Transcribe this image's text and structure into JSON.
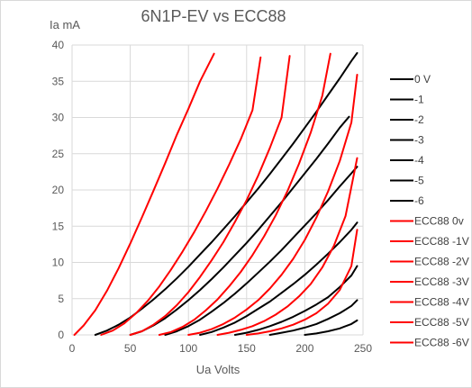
{
  "chart_data": {
    "type": "line",
    "title": "6N1P-EV vs ECC88",
    "xlabel": "Ua Volts",
    "ylabel": "Ia mA",
    "xlim": [
      0,
      250
    ],
    "ylim": [
      0,
      40
    ],
    "xticks": [
      0,
      50,
      100,
      150,
      200,
      250
    ],
    "yticks": [
      0,
      5,
      10,
      15,
      20,
      25,
      30,
      35,
      40
    ],
    "grid": true,
    "legend_position": "right",
    "colors": {
      "6N1P-EV": "#000000",
      "ECC88": "#ff0000"
    },
    "series": [
      {
        "name": "0 V",
        "color": "#000000",
        "points": [
          [
            20,
            0
          ],
          [
            30,
            0.6
          ],
          [
            40,
            1.4
          ],
          [
            50,
            2.4
          ],
          [
            60,
            3.6
          ],
          [
            70,
            4.9
          ],
          [
            80,
            6.3
          ],
          [
            90,
            7.8
          ],
          [
            100,
            9.4
          ],
          [
            110,
            11.1
          ],
          [
            120,
            12.8
          ],
          [
            130,
            14.6
          ],
          [
            140,
            16.4
          ],
          [
            150,
            18.3
          ],
          [
            160,
            20.2
          ],
          [
            170,
            22.2
          ],
          [
            180,
            24.3
          ],
          [
            190,
            26.4
          ],
          [
            200,
            28.6
          ],
          [
            210,
            30.8
          ],
          [
            220,
            33.1
          ],
          [
            230,
            35.4
          ],
          [
            240,
            37.8
          ],
          [
            245,
            38.9
          ]
        ]
      },
      {
        "name": "-1",
        "color": "#000000",
        "points": [
          [
            50,
            0
          ],
          [
            60,
            0.5
          ],
          [
            70,
            1.3
          ],
          [
            80,
            2.3
          ],
          [
            90,
            3.5
          ],
          [
            100,
            4.8
          ],
          [
            110,
            6.2
          ],
          [
            120,
            7.7
          ],
          [
            130,
            9.3
          ],
          [
            140,
            11
          ],
          [
            150,
            12.7
          ],
          [
            160,
            14.5
          ],
          [
            170,
            16.4
          ],
          [
            180,
            18.3
          ],
          [
            190,
            20.3
          ],
          [
            200,
            22.3
          ],
          [
            210,
            24.3
          ],
          [
            220,
            26.4
          ],
          [
            230,
            28.6
          ],
          [
            238,
            30.1
          ]
        ]
      },
      {
        "name": "-2",
        "color": "#000000",
        "points": [
          [
            80,
            0
          ],
          [
            90,
            0.5
          ],
          [
            100,
            1.2
          ],
          [
            110,
            2.1
          ],
          [
            120,
            3.2
          ],
          [
            130,
            4.4
          ],
          [
            140,
            5.7
          ],
          [
            150,
            7.1
          ],
          [
            160,
            8.6
          ],
          [
            170,
            10.1
          ],
          [
            180,
            11.7
          ],
          [
            190,
            13.4
          ],
          [
            200,
            15.1
          ],
          [
            210,
            16.8
          ],
          [
            220,
            18.6
          ],
          [
            230,
            20.5
          ],
          [
            240,
            22.3
          ],
          [
            245,
            23.2
          ]
        ]
      },
      {
        "name": "-3",
        "color": "#000000",
        "points": [
          [
            110,
            0
          ],
          [
            120,
            0.4
          ],
          [
            130,
            1
          ],
          [
            140,
            1.7
          ],
          [
            150,
            2.6
          ],
          [
            160,
            3.6
          ],
          [
            170,
            4.6
          ],
          [
            180,
            5.8
          ],
          [
            190,
            7
          ],
          [
            200,
            8.3
          ],
          [
            210,
            9.7
          ],
          [
            220,
            11.2
          ],
          [
            230,
            12.8
          ],
          [
            240,
            14.5
          ],
          [
            245,
            15.5
          ]
        ]
      },
      {
        "name": "-4",
        "color": "#000000",
        "points": [
          [
            140,
            0
          ],
          [
            150,
            0.3
          ],
          [
            160,
            0.7
          ],
          [
            170,
            1.2
          ],
          [
            180,
            1.8
          ],
          [
            190,
            2.5
          ],
          [
            200,
            3.3
          ],
          [
            210,
            4.2
          ],
          [
            220,
            5.2
          ],
          [
            230,
            6.6
          ],
          [
            240,
            8.2
          ],
          [
            245,
            9.5
          ]
        ]
      },
      {
        "name": "-5",
        "color": "#000000",
        "points": [
          [
            170,
            0
          ],
          [
            180,
            0.3
          ],
          [
            190,
            0.6
          ],
          [
            200,
            1
          ],
          [
            210,
            1.5
          ],
          [
            220,
            2.2
          ],
          [
            230,
            3
          ],
          [
            240,
            4
          ],
          [
            245,
            4.8
          ]
        ]
      },
      {
        "name": "-6",
        "color": "#000000",
        "points": [
          [
            200,
            0
          ],
          [
            210,
            0.2
          ],
          [
            220,
            0.5
          ],
          [
            230,
            0.9
          ],
          [
            240,
            1.5
          ],
          [
            245,
            2
          ]
        ]
      },
      {
        "name": "ECC88 0v",
        "color": "#ff0000",
        "points": [
          [
            2,
            0
          ],
          [
            10,
            1.3
          ],
          [
            20,
            3.4
          ],
          [
            30,
            6.1
          ],
          [
            40,
            9.2
          ],
          [
            50,
            12.6
          ],
          [
            60,
            16.2
          ],
          [
            70,
            19.9
          ],
          [
            80,
            23.7
          ],
          [
            90,
            27.6
          ],
          [
            100,
            31.2
          ],
          [
            110,
            35
          ],
          [
            122,
            38.8
          ]
        ]
      },
      {
        "name": "ECC88 -1V",
        "color": "#ff0000",
        "points": [
          [
            25,
            0
          ],
          [
            35,
            0.6
          ],
          [
            45,
            1.6
          ],
          [
            55,
            3
          ],
          [
            65,
            4.7
          ],
          [
            75,
            6.7
          ],
          [
            85,
            9
          ],
          [
            95,
            11.5
          ],
          [
            105,
            14.2
          ],
          [
            115,
            17.1
          ],
          [
            125,
            20.2
          ],
          [
            135,
            23.5
          ],
          [
            145,
            27
          ],
          [
            155,
            31
          ],
          [
            162,
            38.3
          ]
        ]
      },
      {
        "name": "ECC88 -2V",
        "color": "#ff0000",
        "points": [
          [
            50,
            0
          ],
          [
            60,
            0.5
          ],
          [
            70,
            1.4
          ],
          [
            80,
            2.6
          ],
          [
            90,
            4.1
          ],
          [
            100,
            5.9
          ],
          [
            110,
            8
          ],
          [
            120,
            10.3
          ],
          [
            130,
            12.8
          ],
          [
            140,
            15.6
          ],
          [
            150,
            18.6
          ],
          [
            160,
            22
          ],
          [
            170,
            25.8
          ],
          [
            180,
            30
          ],
          [
            187,
            38.5
          ]
        ]
      },
      {
        "name": "ECC88 -3V",
        "color": "#ff0000",
        "points": [
          [
            75,
            0
          ],
          [
            85,
            0.4
          ],
          [
            95,
            1.1
          ],
          [
            105,
            2.1
          ],
          [
            115,
            3.4
          ],
          [
            125,
            4.9
          ],
          [
            135,
            6.7
          ],
          [
            145,
            8.7
          ],
          [
            155,
            11
          ],
          [
            165,
            13.6
          ],
          [
            175,
            16.5
          ],
          [
            185,
            19.8
          ],
          [
            195,
            23.6
          ],
          [
            205,
            27.9
          ],
          [
            215,
            33
          ],
          [
            222,
            38.8
          ]
        ]
      },
      {
        "name": "ECC88 -4V",
        "color": "#ff0000",
        "points": [
          [
            100,
            0
          ],
          [
            110,
            0.3
          ],
          [
            120,
            0.8
          ],
          [
            130,
            1.5
          ],
          [
            140,
            2.4
          ],
          [
            150,
            3.5
          ],
          [
            160,
            4.8
          ],
          [
            170,
            6.4
          ],
          [
            180,
            8.3
          ],
          [
            190,
            10.5
          ],
          [
            200,
            13.1
          ],
          [
            210,
            16.2
          ],
          [
            220,
            19.8
          ],
          [
            230,
            24
          ],
          [
            240,
            29.3
          ],
          [
            245,
            35.9
          ]
        ]
      },
      {
        "name": "ECC88 -5V",
        "color": "#ff0000",
        "points": [
          [
            125,
            0
          ],
          [
            135,
            0.3
          ],
          [
            145,
            0.7
          ],
          [
            155,
            1.2
          ],
          [
            165,
            1.9
          ],
          [
            175,
            2.8
          ],
          [
            185,
            3.9
          ],
          [
            195,
            5.3
          ],
          [
            205,
            7
          ],
          [
            215,
            9.3
          ],
          [
            225,
            12.3
          ],
          [
            235,
            16.4
          ],
          [
            245,
            24.4
          ]
        ]
      },
      {
        "name": "ECC88 -6V",
        "color": "#ff0000",
        "points": [
          [
            150,
            0
          ],
          [
            160,
            0.2
          ],
          [
            170,
            0.5
          ],
          [
            180,
            0.9
          ],
          [
            190,
            1.4
          ],
          [
            200,
            2.1
          ],
          [
            210,
            3
          ],
          [
            220,
            4.3
          ],
          [
            230,
            6.2
          ],
          [
            240,
            9.5
          ],
          [
            245,
            14.5
          ]
        ]
      }
    ]
  }
}
